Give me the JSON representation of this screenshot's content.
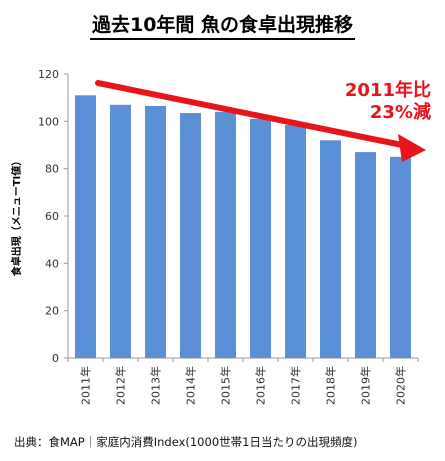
{
  "chart_data": {
    "type": "bar",
    "title": "過去10年間 魚の食卓出現推移",
    "ylabel": "食卓出現（メニューTI値）",
    "xlabel": "",
    "categories": [
      "2011年",
      "2012年",
      "2013年",
      "2014年",
      "2015年",
      "2016年",
      "2017年",
      "2018年",
      "2019年",
      "2020年"
    ],
    "values": [
      111,
      107,
      106.5,
      103.5,
      104,
      101,
      98.5,
      92,
      87,
      85
    ],
    "ylim": [
      0,
      120
    ],
    "yticks": [
      0,
      20,
      40,
      60,
      80,
      100,
      120
    ],
    "grid": false,
    "bar_color": "#5b8fd6",
    "annotation": {
      "line1": "2011年比",
      "line2": "23%減",
      "color": "#e8141b"
    }
  },
  "footer": "出典：食MAP｜家庭内消費Index(1000世帯1日当たりの出現頻度)"
}
